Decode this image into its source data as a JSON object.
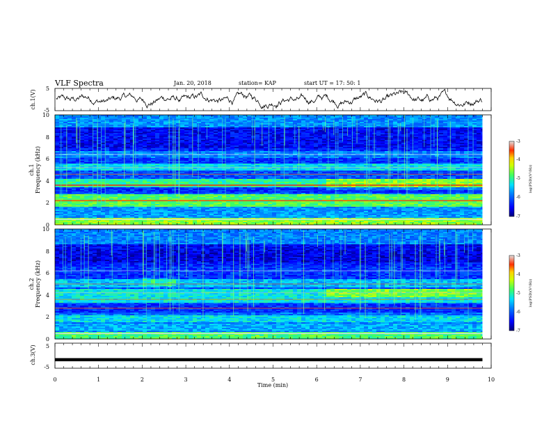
{
  "header": {
    "title": "VLF Spectra",
    "date": "Jan. 20, 2018",
    "station": "station= KAP",
    "start": "start  UT  =   17: 50: 1"
  },
  "chart_data": {
    "type": "heatmap",
    "xlabel": "Time  (min)",
    "xlim": [
      0,
      10
    ],
    "xticks": [
      "0",
      "1",
      "2",
      "3",
      "4",
      "5",
      "6",
      "7",
      "8",
      "9",
      "10"
    ],
    "data_end_min": 9.8,
    "panels": [
      {
        "id": "ch1-waveform",
        "type": "line",
        "ylabel": "ch.1(V)",
        "ylim": [
          -5,
          5
        ],
        "yticks": [
          "5",
          "-5"
        ]
      },
      {
        "id": "ch1-spectrogram",
        "type": "heatmap",
        "ylabel_line1": "ch.1",
        "ylabel_line2": "Frequency  (kHz)",
        "ylim": [
          0,
          10
        ],
        "yticks": [
          "0",
          "2",
          "4",
          "6",
          "8",
          "10"
        ],
        "colorbar": {
          "label": "log(PSD)(V²/Hz)",
          "range": [
            -7,
            -3
          ],
          "ticks": [
            "-3",
            "-4",
            "-5",
            "-6",
            "-7"
          ]
        }
      },
      {
        "id": "ch2-spectrogram",
        "type": "heatmap",
        "ylabel_line1": "ch.2",
        "ylabel_line2": "Frequency  (kHz)",
        "ylim": [
          0,
          10
        ],
        "yticks": [
          "0",
          "2",
          "4",
          "6",
          "8",
          "10"
        ],
        "colorbar": {
          "label": "log(PSD)(V²/Hz)",
          "range": [
            -7,
            -3
          ],
          "ticks": [
            "-3",
            "-4",
            "-5",
            "-6",
            "-7"
          ]
        }
      },
      {
        "id": "ch3-waveform",
        "type": "line",
        "ylabel": "ch.3(V)",
        "ylim": [
          -5,
          5
        ],
        "yticks": [
          "5",
          "-5"
        ],
        "constant_value_v": -1.6
      }
    ]
  }
}
